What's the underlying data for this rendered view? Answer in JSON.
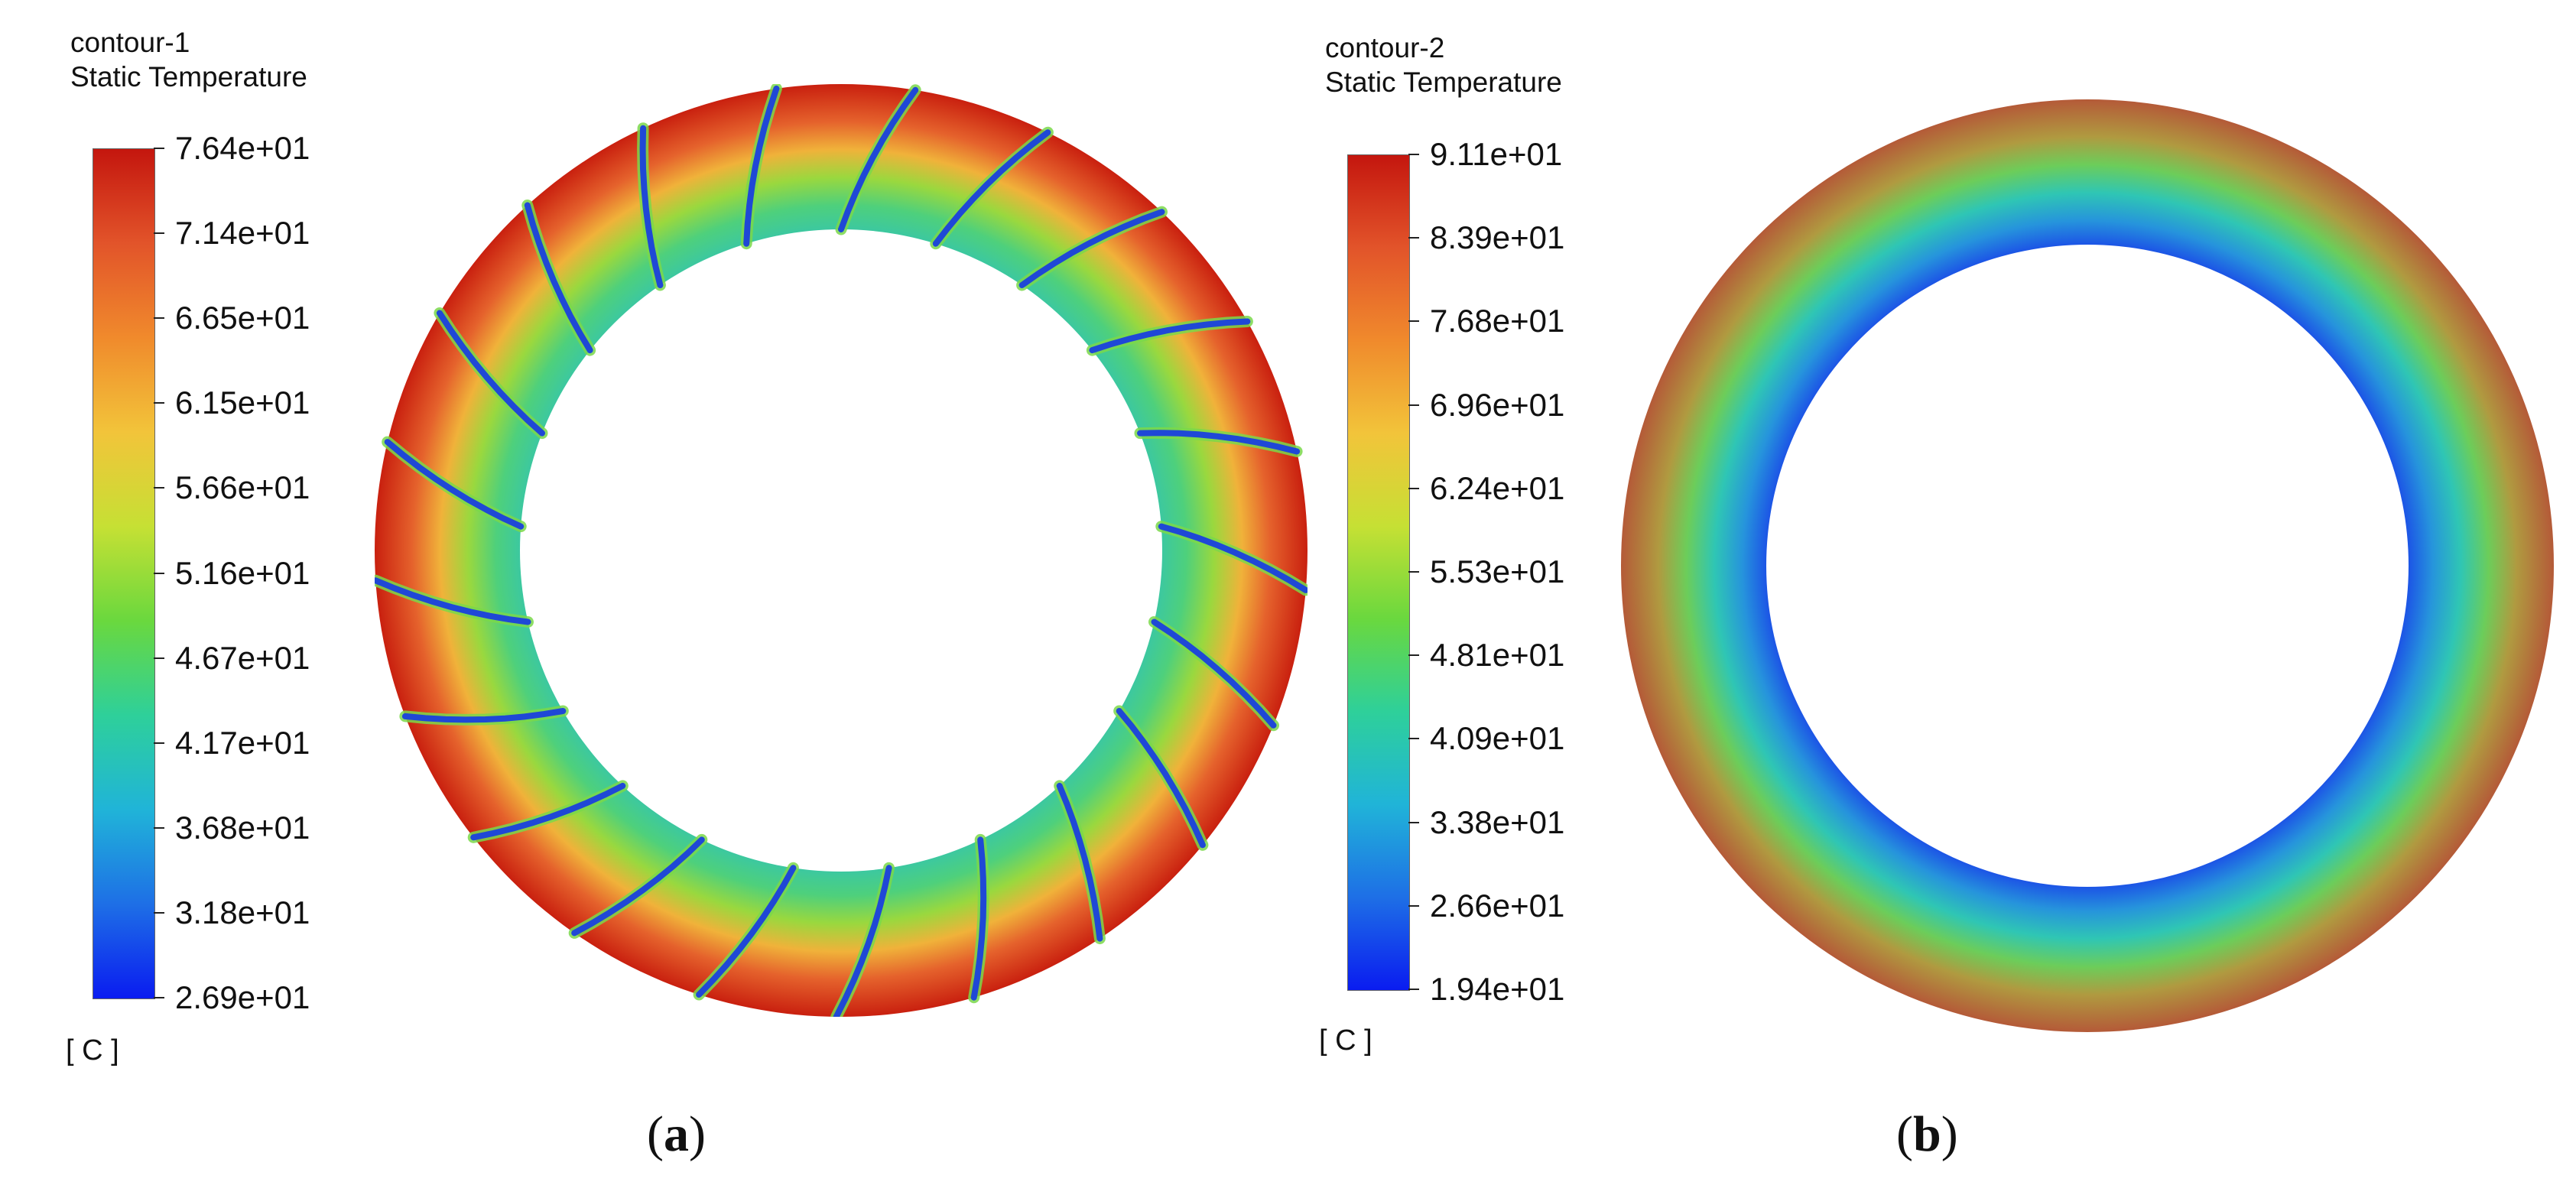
{
  "panels": [
    {
      "id": "a",
      "contour_name": "contour-1",
      "variable": "Static Temperature",
      "unit": "[ C ]",
      "caption_letter": "a",
      "colorbar_ticks": [
        "7.64e+01",
        "7.14e+01",
        "6.65e+01",
        "6.15e+01",
        "5.66e+01",
        "5.16e+01",
        "4.67e+01",
        "4.17e+01",
        "3.68e+01",
        "3.18e+01",
        "2.69e+01"
      ],
      "range": [
        26.9,
        76.4
      ],
      "has_blades": true,
      "blade_count": 21
    },
    {
      "id": "b",
      "contour_name": "contour-2",
      "variable": "Static Temperature",
      "unit": "[ C ]",
      "caption_letter": "b",
      "colorbar_ticks": [
        "9.11e+01",
        "8.39e+01",
        "7.68e+01",
        "6.96e+01",
        "6.24e+01",
        "5.53e+01",
        "4.81e+01",
        "4.09e+01",
        "3.38e+01",
        "2.66e+01",
        "1.94e+01"
      ],
      "range": [
        19.4,
        91.1
      ],
      "has_blades": false,
      "blade_count": 0
    }
  ],
  "colormap": [
    "#0a1cf0",
    "#1e6fe6",
    "#20b4d8",
    "#2ed09a",
    "#6ad83e",
    "#c6e034",
    "#f2c43a",
    "#f08a2c",
    "#e2542a",
    "#c4160e"
  ]
}
